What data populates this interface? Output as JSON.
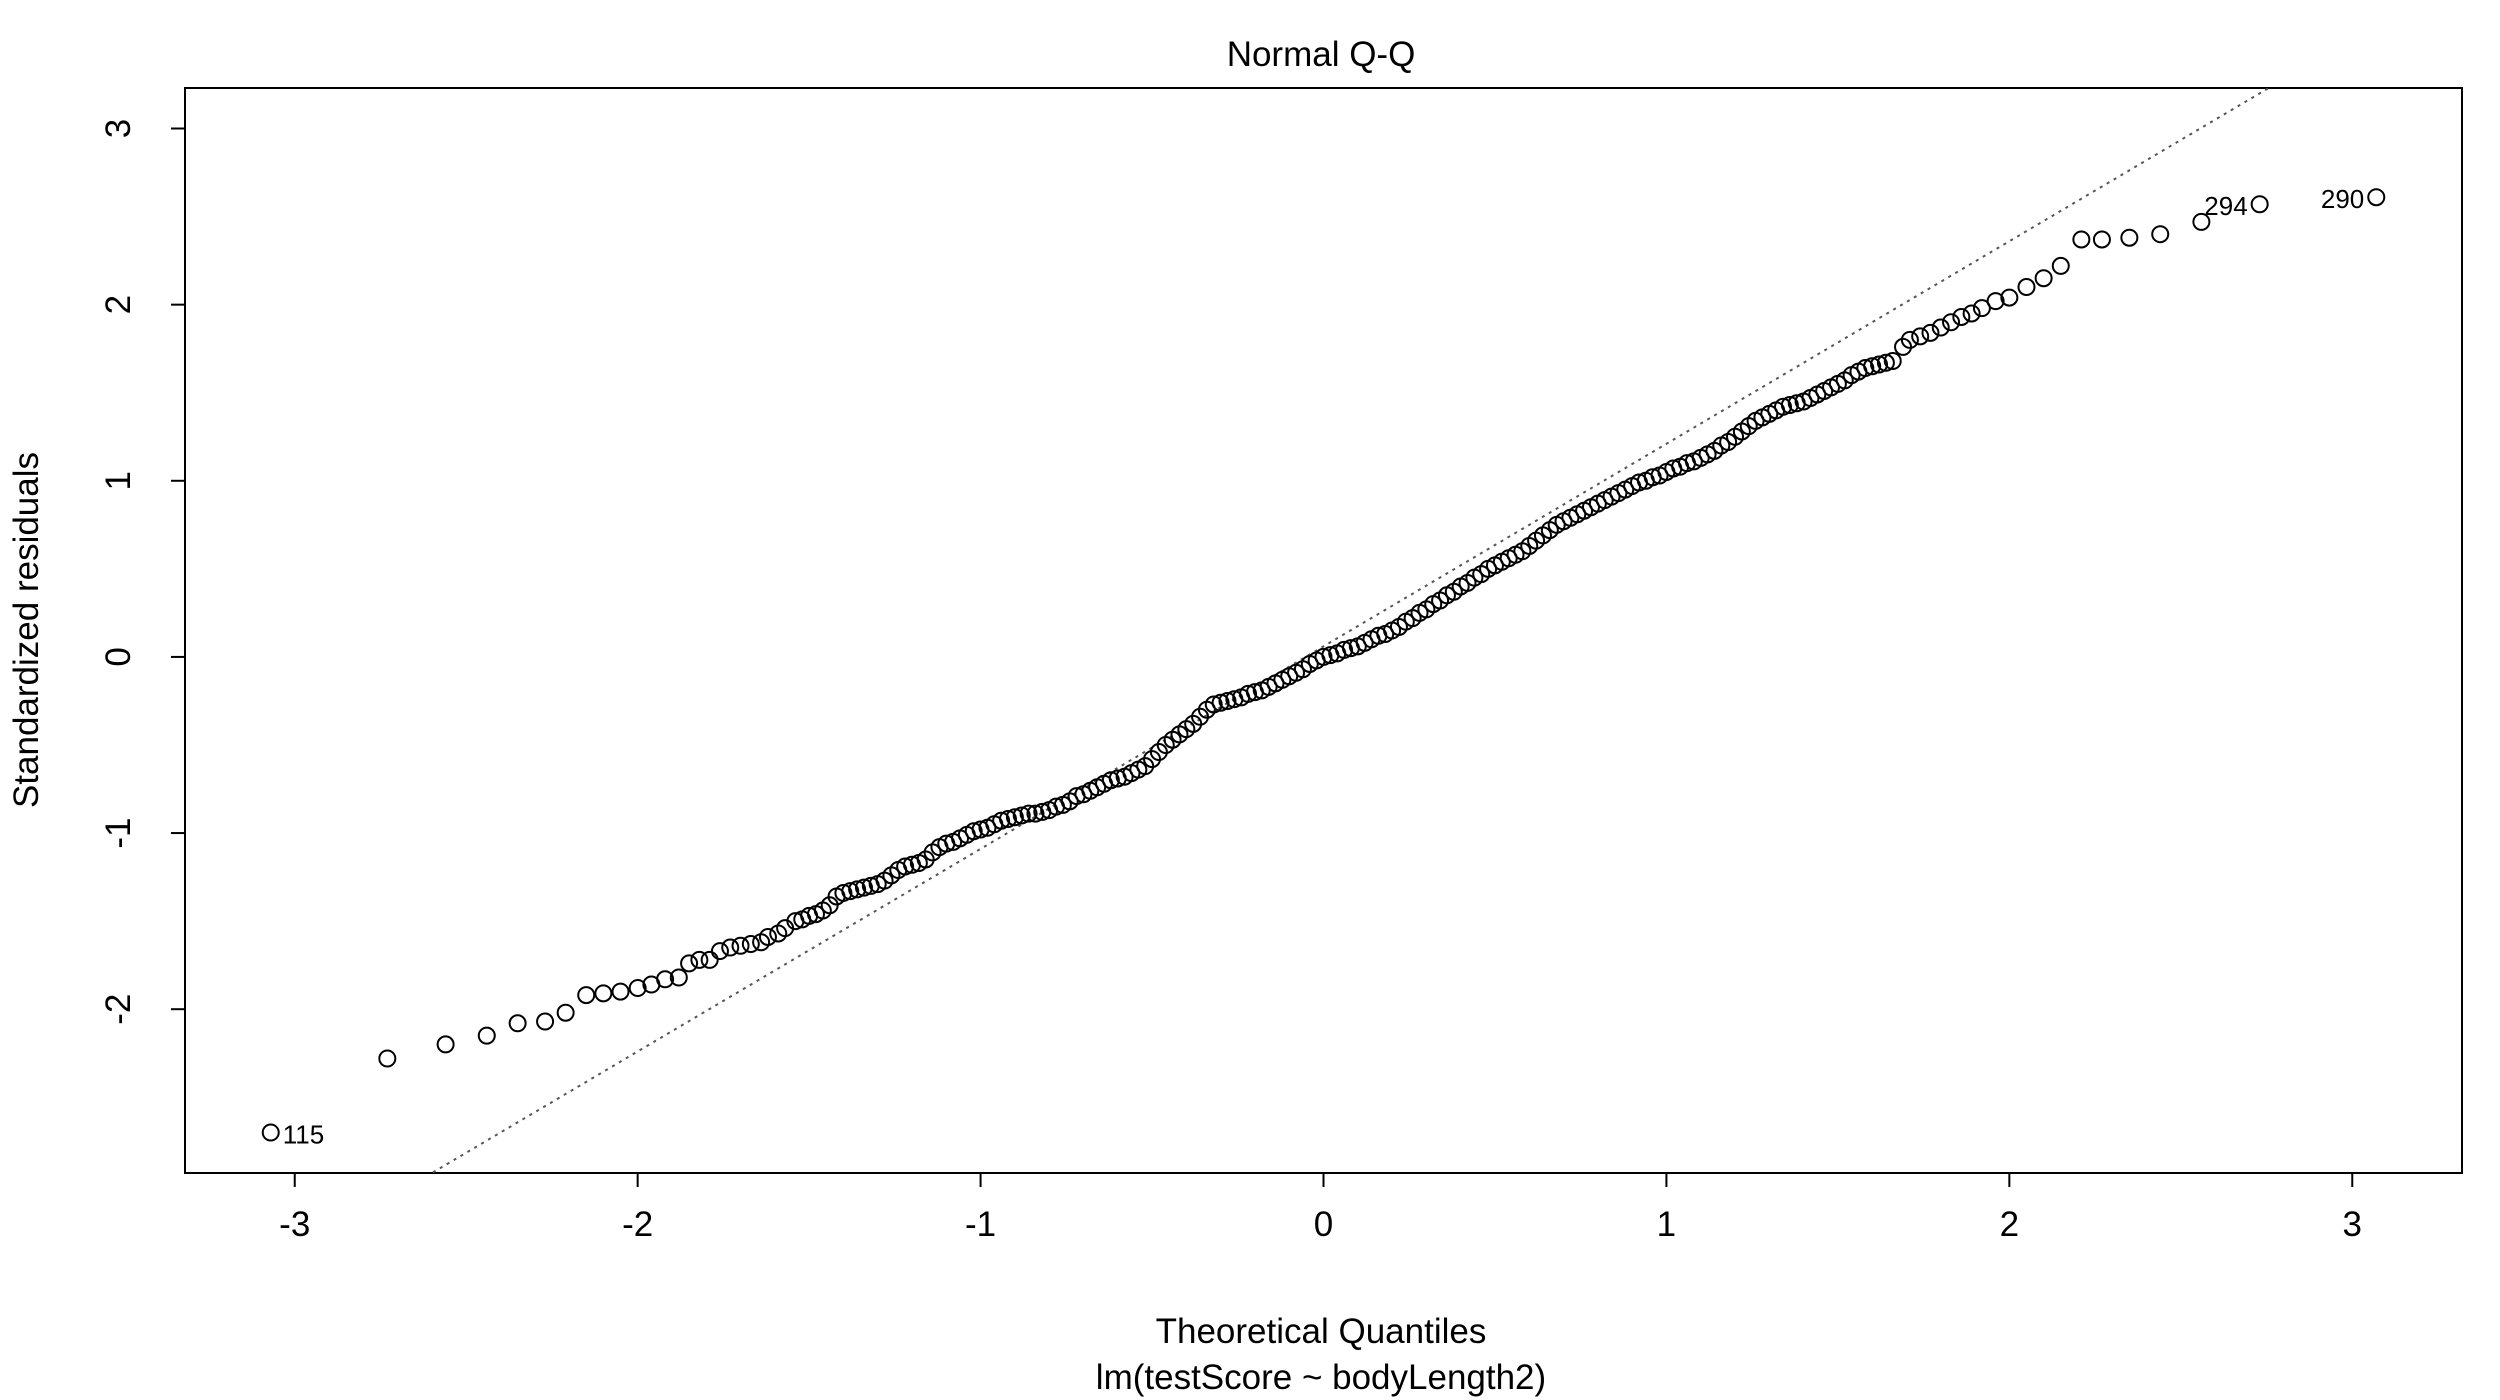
{
  "chart_data": {
    "type": "scatter",
    "title": "Normal Q-Q",
    "xlabel": "Theoretical Quantiles",
    "subtitle": "lm(testScore ~ bodyLength2)",
    "ylabel": "Standardized residuals",
    "xlim": [
      -3.32,
      3.32
    ],
    "ylim": [
      -2.93,
      3.23
    ],
    "xticks": [
      -3,
      -2,
      -1,
      0,
      1,
      2,
      3
    ],
    "yticks": [
      -2,
      -1,
      0,
      1,
      2,
      3
    ],
    "xtick_labels": [
      "-3",
      "-2",
      "-1",
      "0",
      "1",
      "2",
      "3"
    ],
    "ytick_labels": [
      "-2",
      "-1",
      "0",
      "1",
      "2",
      "3"
    ],
    "reference_line": {
      "style": "dotted",
      "intercept": 0.06,
      "slope": 1.15
    },
    "labeled_points": [
      {
        "label": "115",
        "x": -3.07,
        "y": -2.7
      },
      {
        "label": "294",
        "x": 2.73,
        "y": 2.57
      },
      {
        "label": "290",
        "x": 3.07,
        "y": 2.61
      }
    ],
    "points": [
      [
        -3.07,
        -2.7
      ],
      [
        -2.73,
        -2.28
      ],
      [
        -2.56,
        -2.2
      ],
      [
        -2.44,
        -2.15
      ],
      [
        -2.35,
        -2.08
      ],
      [
        -2.27,
        -2.07
      ],
      [
        -2.21,
        -2.02
      ],
      [
        -2.15,
        -1.92
      ],
      [
        -2.1,
        -1.91
      ],
      [
        -2.05,
        -1.9
      ],
      [
        -2.0,
        -1.88
      ],
      [
        -1.96,
        -1.86
      ],
      [
        -1.92,
        -1.83
      ],
      [
        -1.88,
        -1.82
      ],
      [
        -1.85,
        -1.74
      ],
      [
        -1.82,
        -1.72
      ],
      [
        -1.79,
        -1.72
      ],
      [
        -1.76,
        -1.67
      ],
      [
        -1.73,
        -1.65
      ],
      [
        -1.7,
        -1.64
      ],
      [
        -1.67,
        -1.63
      ],
      [
        -1.64,
        -1.62
      ],
      [
        -1.62,
        -1.59
      ],
      [
        -1.59,
        -1.57
      ],
      [
        -1.57,
        -1.54
      ],
      [
        -1.54,
        -1.5
      ],
      [
        -1.52,
        -1.49
      ],
      [
        -1.5,
        -1.47
      ],
      [
        -1.48,
        -1.46
      ],
      [
        -1.46,
        -1.44
      ],
      [
        -1.44,
        -1.41
      ],
      [
        -1.42,
        -1.36
      ],
      [
        -1.4,
        -1.34
      ],
      [
        -1.38,
        -1.33
      ],
      [
        -1.36,
        -1.32
      ],
      [
        -1.34,
        -1.31
      ],
      [
        -1.32,
        -1.3
      ],
      [
        -1.3,
        -1.29
      ],
      [
        -1.28,
        -1.27
      ],
      [
        -1.26,
        -1.24
      ],
      [
        -1.24,
        -1.21
      ],
      [
        -1.22,
        -1.19
      ],
      [
        -1.2,
        -1.18
      ],
      [
        -1.18,
        -1.17
      ],
      [
        -1.16,
        -1.15
      ],
      [
        -1.14,
        -1.11
      ],
      [
        -1.12,
        -1.08
      ],
      [
        -1.1,
        -1.06
      ],
      [
        -1.08,
        -1.05
      ],
      [
        -1.06,
        -1.03
      ],
      [
        -1.04,
        -1.01
      ],
      [
        -1.02,
        -0.99
      ],
      [
        -1.0,
        -0.98
      ],
      [
        -0.98,
        -0.97
      ],
      [
        -0.96,
        -0.95
      ],
      [
        -0.94,
        -0.93
      ],
      [
        -0.92,
        -0.92
      ],
      [
        -0.9,
        -0.91
      ],
      [
        -0.88,
        -0.9
      ],
      [
        -0.86,
        -0.89
      ],
      [
        -0.84,
        -0.89
      ],
      [
        -0.82,
        -0.88
      ],
      [
        -0.8,
        -0.87
      ],
      [
        -0.78,
        -0.85
      ],
      [
        -0.76,
        -0.84
      ],
      [
        -0.74,
        -0.82
      ],
      [
        -0.72,
        -0.79
      ],
      [
        -0.7,
        -0.78
      ],
      [
        -0.68,
        -0.76
      ],
      [
        -0.66,
        -0.74
      ],
      [
        -0.64,
        -0.72
      ],
      [
        -0.62,
        -0.7
      ],
      [
        -0.6,
        -0.69
      ],
      [
        -0.58,
        -0.68
      ],
      [
        -0.56,
        -0.66
      ],
      [
        -0.54,
        -0.64
      ],
      [
        -0.52,
        -0.62
      ],
      [
        -0.5,
        -0.58
      ],
      [
        -0.48,
        -0.54
      ],
      [
        -0.46,
        -0.5
      ],
      [
        -0.44,
        -0.47
      ],
      [
        -0.42,
        -0.44
      ],
      [
        -0.4,
        -0.41
      ],
      [
        -0.38,
        -0.38
      ],
      [
        -0.36,
        -0.34
      ],
      [
        -0.34,
        -0.3
      ],
      [
        -0.32,
        -0.27
      ],
      [
        -0.3,
        -0.26
      ],
      [
        -0.28,
        -0.25
      ],
      [
        -0.26,
        -0.24
      ],
      [
        -0.24,
        -0.23
      ],
      [
        -0.22,
        -0.21
      ],
      [
        -0.2,
        -0.2
      ],
      [
        -0.18,
        -0.19
      ],
      [
        -0.16,
        -0.17
      ],
      [
        -0.14,
        -0.15
      ],
      [
        -0.12,
        -0.13
      ],
      [
        -0.1,
        -0.11
      ],
      [
        -0.08,
        -0.09
      ],
      [
        -0.06,
        -0.07
      ],
      [
        -0.04,
        -0.04
      ],
      [
        -0.02,
        -0.02
      ],
      [
        0.0,
        0.0
      ],
      [
        0.02,
        0.01
      ],
      [
        0.04,
        0.02
      ],
      [
        0.06,
        0.04
      ],
      [
        0.08,
        0.05
      ],
      [
        0.1,
        0.06
      ],
      [
        0.12,
        0.08
      ],
      [
        0.14,
        0.1
      ],
      [
        0.16,
        0.12
      ],
      [
        0.18,
        0.13
      ],
      [
        0.2,
        0.15
      ],
      [
        0.22,
        0.17
      ],
      [
        0.24,
        0.2
      ],
      [
        0.26,
        0.22
      ],
      [
        0.28,
        0.25
      ],
      [
        0.3,
        0.27
      ],
      [
        0.32,
        0.3
      ],
      [
        0.34,
        0.32
      ],
      [
        0.36,
        0.35
      ],
      [
        0.38,
        0.37
      ],
      [
        0.4,
        0.4
      ],
      [
        0.42,
        0.42
      ],
      [
        0.44,
        0.45
      ],
      [
        0.46,
        0.47
      ],
      [
        0.48,
        0.5
      ],
      [
        0.5,
        0.52
      ],
      [
        0.52,
        0.54
      ],
      [
        0.54,
        0.56
      ],
      [
        0.56,
        0.58
      ],
      [
        0.58,
        0.6
      ],
      [
        0.6,
        0.63
      ],
      [
        0.62,
        0.66
      ],
      [
        0.64,
        0.69
      ],
      [
        0.66,
        0.72
      ],
      [
        0.68,
        0.75
      ],
      [
        0.7,
        0.77
      ],
      [
        0.72,
        0.79
      ],
      [
        0.74,
        0.81
      ],
      [
        0.76,
        0.83
      ],
      [
        0.78,
        0.85
      ],
      [
        0.8,
        0.87
      ],
      [
        0.82,
        0.89
      ],
      [
        0.84,
        0.91
      ],
      [
        0.86,
        0.93
      ],
      [
        0.88,
        0.95
      ],
      [
        0.9,
        0.97
      ],
      [
        0.92,
        0.99
      ],
      [
        0.94,
        1.0
      ],
      [
        0.96,
        1.02
      ],
      [
        0.98,
        1.03
      ],
      [
        1.0,
        1.05
      ],
      [
        1.02,
        1.07
      ],
      [
        1.04,
        1.08
      ],
      [
        1.06,
        1.1
      ],
      [
        1.08,
        1.11
      ],
      [
        1.1,
        1.13
      ],
      [
        1.12,
        1.15
      ],
      [
        1.14,
        1.17
      ],
      [
        1.16,
        1.2
      ],
      [
        1.18,
        1.22
      ],
      [
        1.2,
        1.25
      ],
      [
        1.22,
        1.28
      ],
      [
        1.24,
        1.31
      ],
      [
        1.26,
        1.34
      ],
      [
        1.28,
        1.36
      ],
      [
        1.3,
        1.38
      ],
      [
        1.32,
        1.4
      ],
      [
        1.34,
        1.42
      ],
      [
        1.36,
        1.43
      ],
      [
        1.38,
        1.44
      ],
      [
        1.4,
        1.45
      ],
      [
        1.42,
        1.47
      ],
      [
        1.44,
        1.49
      ],
      [
        1.46,
        1.51
      ],
      [
        1.48,
        1.53
      ],
      [
        1.5,
        1.55
      ],
      [
        1.52,
        1.57
      ],
      [
        1.54,
        1.6
      ],
      [
        1.56,
        1.62
      ],
      [
        1.58,
        1.64
      ],
      [
        1.6,
        1.65
      ],
      [
        1.62,
        1.66
      ],
      [
        1.64,
        1.67
      ],
      [
        1.66,
        1.68
      ],
      [
        1.69,
        1.76
      ],
      [
        1.71,
        1.8
      ],
      [
        1.74,
        1.82
      ],
      [
        1.77,
        1.84
      ],
      [
        1.8,
        1.87
      ],
      [
        1.83,
        1.9
      ],
      [
        1.86,
        1.93
      ],
      [
        1.89,
        1.95
      ],
      [
        1.92,
        1.98
      ],
      [
        1.96,
        2.02
      ],
      [
        2.0,
        2.04
      ],
      [
        2.05,
        2.1
      ],
      [
        2.1,
        2.15
      ],
      [
        2.15,
        2.22
      ],
      [
        2.21,
        2.37
      ],
      [
        2.27,
        2.37
      ],
      [
        2.35,
        2.38
      ],
      [
        2.44,
        2.4
      ],
      [
        2.56,
        2.47
      ],
      [
        2.73,
        2.57
      ],
      [
        3.07,
        2.61
      ]
    ]
  }
}
